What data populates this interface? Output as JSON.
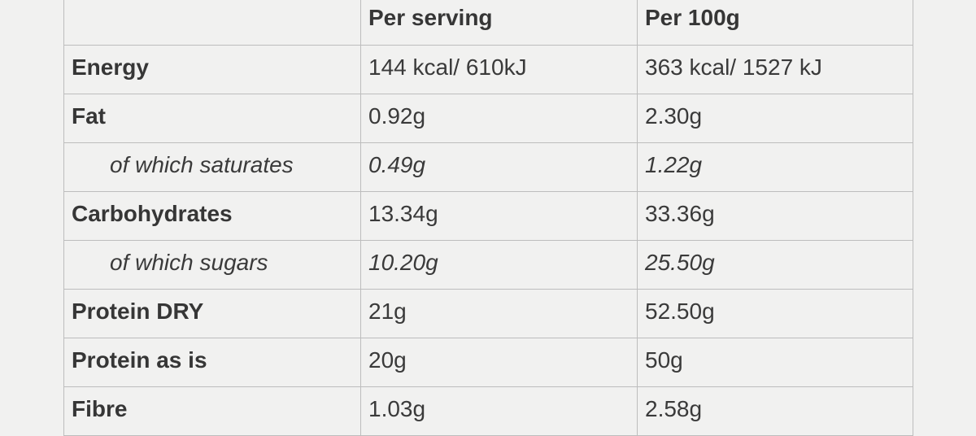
{
  "table": {
    "columns": [
      "Per serving",
      "Per 100g"
    ],
    "rows": [
      {
        "cells": [
          "Energy",
          "144 kcal/ 610kJ",
          "363 kcal/ 1527 kJ"
        ]
      },
      {
        "cells": [
          "Fat",
          "0.92g",
          "2.30g"
        ],
        "sub_rows": [
          [
            "of which saturates",
            "0.49g",
            "1.22g"
          ]
        ]
      },
      {
        "cells": [
          "Carbohydrates",
          "13.34g",
          "33.36g"
        ],
        "sub_rows": [
          [
            "of which sugars",
            "10.20g",
            "25.50g"
          ]
        ]
      },
      {
        "cells": [
          "Protein DRY",
          "21g",
          "52.50g"
        ]
      },
      {
        "cells": [
          "Protein as is",
          "20g",
          "50g"
        ]
      },
      {
        "cells": [
          "Fibre",
          "1.03g",
          "2.58g"
        ]
      }
    ]
  }
}
